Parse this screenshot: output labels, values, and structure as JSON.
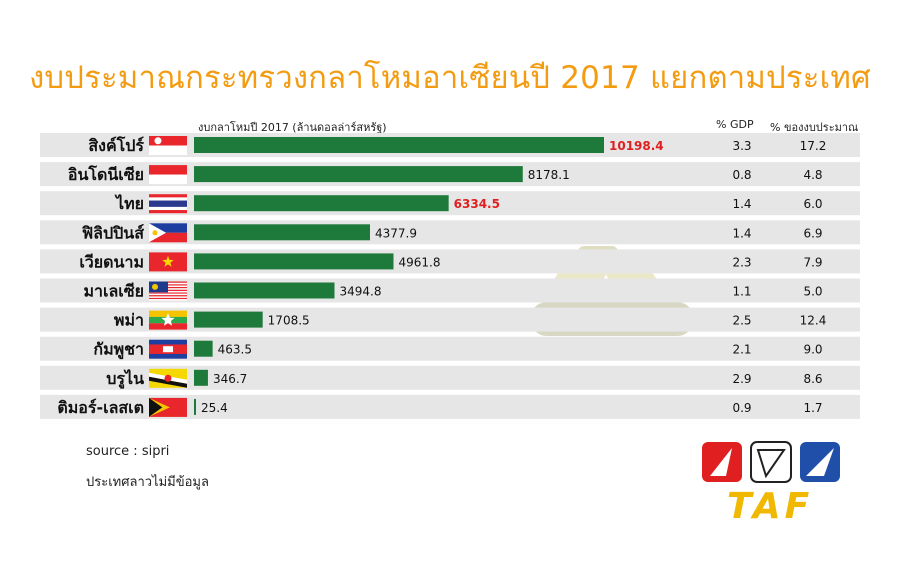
{
  "title": "งบประมาณกระทรวงกลาโหมอาเซียนปี 2017 แยกตามประเทศ",
  "columns": {
    "axis_label": "งบกลาโหมปี 2017 (ล้านดอลล่าร์สหรัฐ)",
    "gdp": "% GDP",
    "budget": "% ของงบประมาณ"
  },
  "colors": {
    "bar": "#1e7a3b",
    "highlight": "#e02020",
    "row_bg": "#e6e6e6",
    "title": "#f39c12"
  },
  "chart_data": {
    "type": "bar",
    "orientation": "horizontal",
    "categories": [
      "สิงค์โปร์",
      "อินโดนีเซีย",
      "ไทย",
      "ฟิลิปปินส์",
      "เวียดนาม",
      "มาเลเซีย",
      "พม่า",
      "กัมพูชา",
      "บรูไน",
      "ติมอร์-เลสเต"
    ],
    "values": [
      10198.4,
      8178.1,
      6334.5,
      4377.9,
      4961.8,
      3494.8,
      1708.5,
      463.5,
      346.7,
      25.4
    ],
    "value_labels": [
      "10198.4",
      "8178.1",
      "6334.5",
      "4377.9",
      "4961.8",
      "3494.8",
      "1708.5",
      "463.5",
      "346.7",
      "25.4"
    ],
    "highlighted": [
      "สิงค์โปร์",
      "ไทย"
    ],
    "gdp_percent": [
      "3.3",
      "0.8",
      "1.4",
      "1.4",
      "2.3",
      "1.1",
      "2.5",
      "2.1",
      "2.9",
      "0.9"
    ],
    "budget_percent": [
      "17.2",
      "4.8",
      "6.0",
      "6.9",
      "7.9",
      "5.0",
      "12.4",
      "9.0",
      "8.6",
      "1.7"
    ],
    "flags": [
      "singapore-flag-icon",
      "indonesia-flag-icon",
      "thailand-flag-icon",
      "philippines-flag-icon",
      "vietnam-flag-icon",
      "malaysia-flag-icon",
      "myanmar-flag-icon",
      "cambodia-flag-icon",
      "brunei-flag-icon",
      "timor-leste-flag-icon"
    ],
    "title": "งบประมาณกระทรวงกลาโหมอาเซียนปี 2017 แยกตามประเทศ",
    "xlabel": "งบกลาโหมปี 2017 (ล้านดอลล่าร์สหรัฐ)",
    "ylabel": "",
    "legend": "none",
    "grid": false
  },
  "footer": {
    "source": "source : sipri",
    "note": "ประเทศลาวไม่มีข้อมูล"
  },
  "logo": {
    "text": "TAF"
  },
  "watermark_icon": "tank-icon"
}
